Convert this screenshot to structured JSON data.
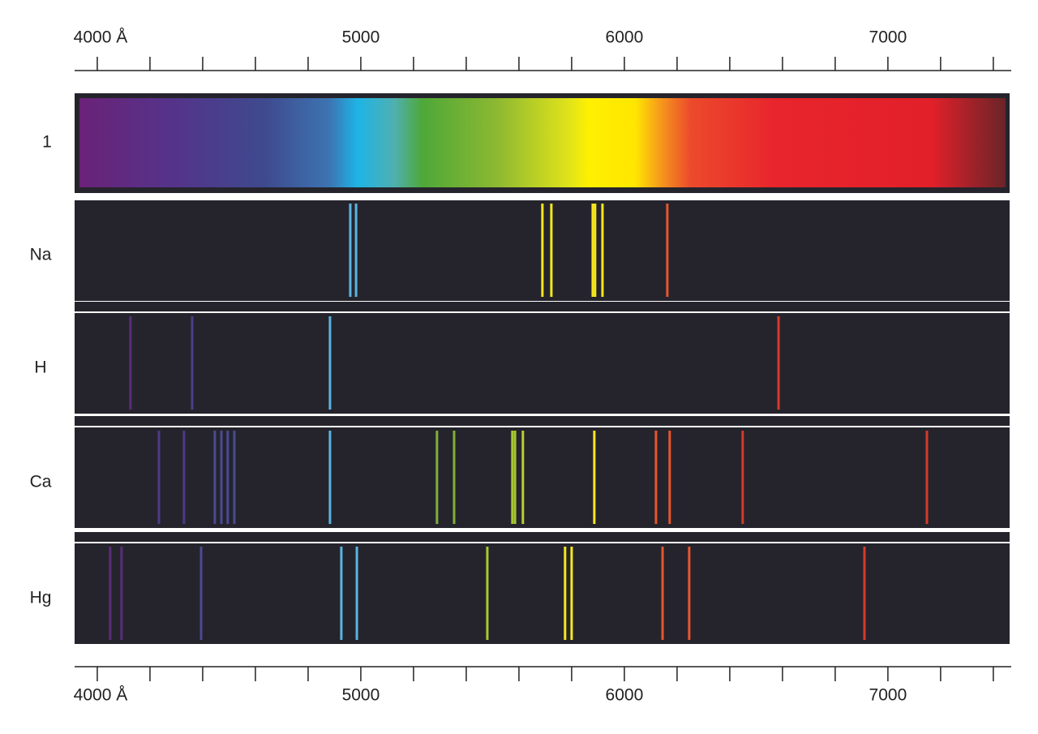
{
  "chart_data": {
    "type": "spectrum",
    "continuous_label": "1",
    "xlim": [
      3914,
      7468
    ],
    "xticks": [
      {
        "value": 4000,
        "label": "4000 Å"
      },
      5000,
      6000,
      7000
    ],
    "xminor": [
      4200,
      4400,
      4600,
      4800,
      5200,
      5400,
      5600,
      5800,
      6200,
      6400,
      6600,
      6800,
      7200,
      7400
    ],
    "series": [
      {
        "name": "Na",
        "values": [
          4960,
          4982,
          5689,
          5723,
          5880,
          5889,
          5917,
          6163
        ],
        "colors": [
          "#5ab4e0",
          "#5ab4e0",
          "#f5e61e",
          "#f5e61e",
          "#f5e61e",
          "#f5e61e",
          "#f5e61e",
          "#e8552f"
        ]
      },
      {
        "name": "H",
        "values": [
          4126,
          4360,
          4883,
          6585
        ],
        "colors": [
          "#5a2d7a",
          "#4a3f8a",
          "#5ab4e0",
          "#d63a2a"
        ]
      },
      {
        "name": "Ca",
        "values": [
          4234,
          4329,
          4446,
          4471,
          4495,
          4520,
          4883,
          5289,
          5354,
          5575,
          5585,
          5615,
          5886,
          6120,
          6172,
          6449,
          7148
        ],
        "colors": [
          "#4e3a86",
          "#4e3a86",
          "#4a4b92",
          "#4a4b92",
          "#4a4b92",
          "#4a4b92",
          "#5ab4e0",
          "#7fb03a",
          "#7fb03a",
          "#a8c832",
          "#a8c832",
          "#b8d030",
          "#f5e61e",
          "#e8552f",
          "#e8552f",
          "#d63a2a",
          "#d63a2a"
        ]
      },
      {
        "name": "Hg",
        "values": [
          4049,
          4092,
          4394,
          4926,
          4985,
          5480,
          5775,
          5800,
          6145,
          6246,
          6911
        ],
        "colors": [
          "#5a2d7a",
          "#5a2d7a",
          "#4a4b92",
          "#5ab4e0",
          "#5ab4e0",
          "#a8c832",
          "#f5e61e",
          "#f5e61e",
          "#e8552f",
          "#e8552f",
          "#d63a2a"
        ]
      }
    ]
  }
}
